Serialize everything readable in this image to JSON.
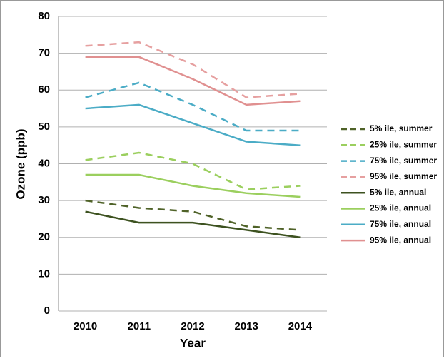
{
  "chart_data": {
    "type": "line",
    "x_label": "Year",
    "y_label": "Ozone (ppb)",
    "categories": [
      "2010",
      "2011",
      "2012",
      "2013",
      "2014"
    ],
    "ylim": [
      0,
      80
    ],
    "yticks": [
      0,
      10,
      20,
      30,
      40,
      50,
      60,
      70,
      80
    ],
    "grid": true,
    "legend": "right",
    "series": [
      {
        "name": "5% ile, summer",
        "color": "#4f6228",
        "line_style": "dashed",
        "values": [
          30,
          28,
          27,
          23,
          22
        ]
      },
      {
        "name": "25% ile, summer",
        "color": "#9bcf5e",
        "line_style": "dashed",
        "values": [
          41,
          43,
          40,
          33,
          34
        ]
      },
      {
        "name": "75% ile, summer",
        "color": "#4bacc6",
        "line_style": "dashed",
        "values": [
          58,
          62,
          56,
          49,
          49
        ]
      },
      {
        "name": "95% ile, summer",
        "color": "#e6a0a0",
        "line_style": "dashed",
        "values": [
          72,
          73,
          67,
          58,
          59
        ]
      },
      {
        "name": "5% ile, annual",
        "color": "#3d5220",
        "line_style": "solid",
        "values": [
          27,
          24,
          24,
          22,
          20
        ]
      },
      {
        "name": "25% ile, annual",
        "color": "#9bcf5e",
        "line_style": "solid",
        "values": [
          37,
          37,
          34,
          32,
          31
        ]
      },
      {
        "name": "75% ile, annual",
        "color": "#4bacc6",
        "line_style": "solid",
        "values": [
          55,
          56,
          51,
          46,
          45
        ]
      },
      {
        "name": "95% ile, annual",
        "color": "#e09090",
        "line_style": "solid",
        "values": [
          69,
          69,
          63,
          56,
          57
        ]
      }
    ]
  }
}
